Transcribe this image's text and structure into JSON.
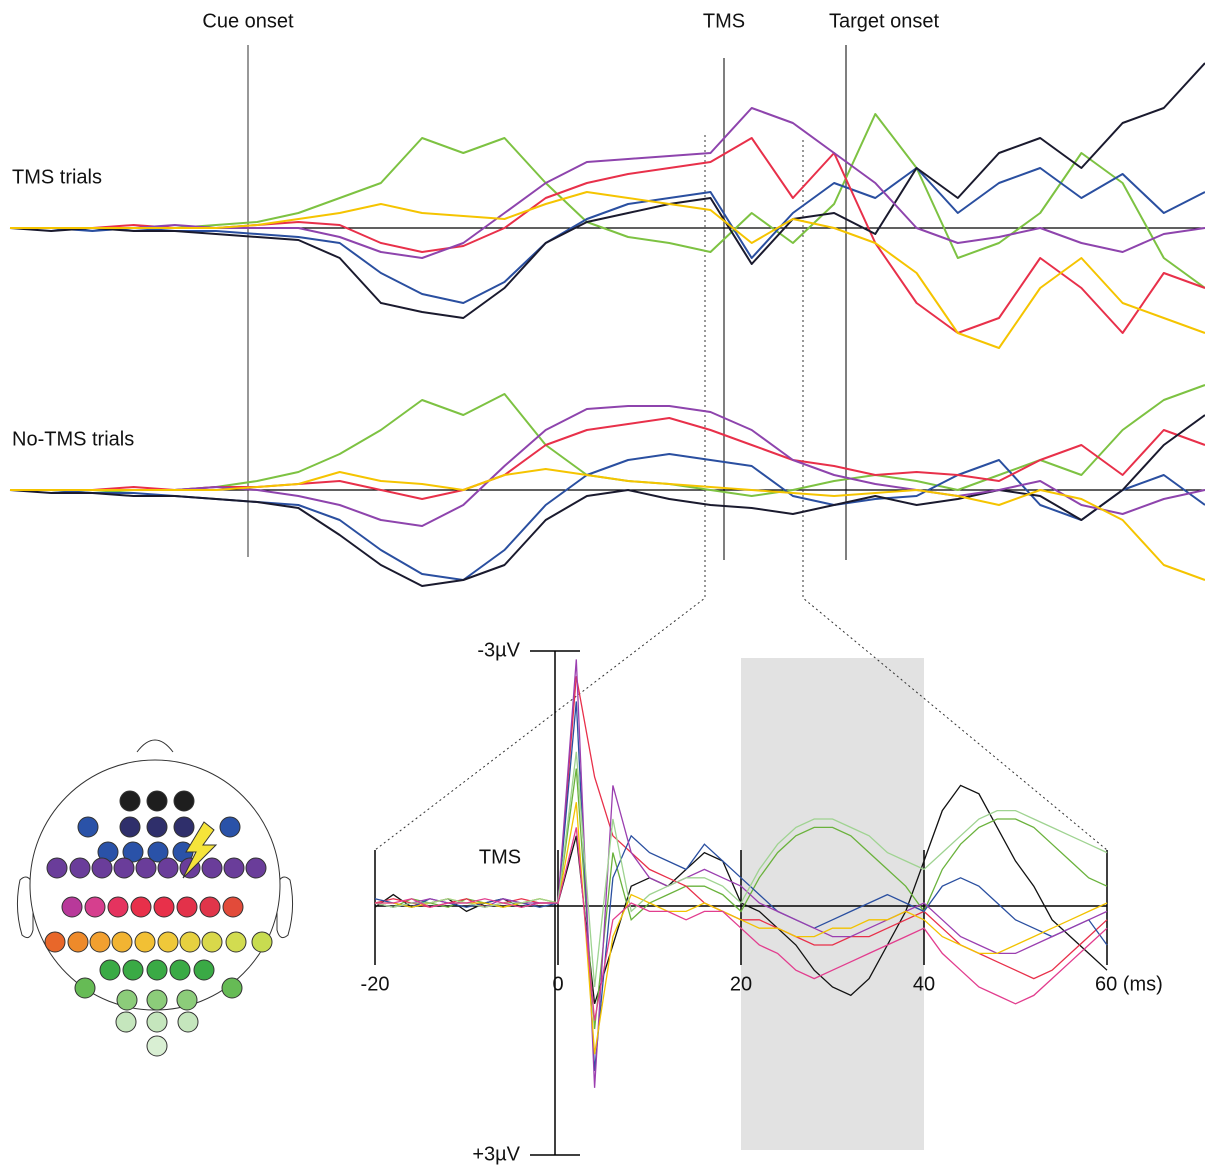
{
  "chart_data": [
    {
      "type": "line",
      "title": "TMS trials",
      "annotations": [
        "Cue onset",
        "TMS",
        "Target onset"
      ],
      "series": [
        {
          "color": "#7dc242",
          "values": [
            0,
            0,
            0,
            0,
            0,
            -0.1,
            -0.2,
            -0.5,
            -1.0,
            -1.5,
            -3.0,
            -2.5,
            -3.0,
            -1.5,
            -0.2,
            0.3,
            0.5,
            0.8,
            -0.5,
            0.5,
            -0.8,
            -3.8,
            -2.0,
            1.0,
            0.5,
            -0.5,
            -2.5,
            -1.5,
            1.0,
            2.0
          ]
        },
        {
          "color": "#2a4fa0",
          "values": [
            0,
            0,
            0.1,
            0,
            0.1,
            0.1,
            0.2,
            0.3,
            0.5,
            1.5,
            2.2,
            2.5,
            1.8,
            0.5,
            -0.3,
            -0.8,
            -1.0,
            -1.2,
            1.0,
            -0.5,
            -1.5,
            -1.0,
            -2.0,
            -0.5,
            -1.5,
            -2.0,
            -1.0,
            -1.8,
            -0.5,
            -1.2
          ]
        },
        {
          "color": "#e8304a",
          "values": [
            0,
            0,
            0,
            -0.1,
            0,
            0,
            -0.1,
            -0.2,
            -0.1,
            0.5,
            0.8,
            0.6,
            0,
            -1.0,
            -1.5,
            -1.8,
            -2.0,
            -2.2,
            -3.0,
            -1.0,
            -2.5,
            0.5,
            2.5,
            3.5,
            3.0,
            1.0,
            2.0,
            3.5,
            1.5,
            2.0
          ]
        },
        {
          "color": "#1a1a2e",
          "values": [
            0,
            0.1,
            0,
            0.1,
            0.1,
            0.2,
            0.3,
            0.4,
            1.0,
            2.5,
            2.8,
            3.0,
            2.0,
            0.5,
            -0.2,
            -0.5,
            -0.8,
            -1.0,
            1.2,
            -0.3,
            -0.5,
            0.2,
            -2.0,
            -1.0,
            -2.5,
            -3.0,
            -2.0,
            -3.5,
            -4.0,
            -5.5
          ]
        },
        {
          "color": "#8e44ad",
          "values": [
            0,
            0,
            0,
            0,
            -0.1,
            0,
            0,
            0,
            0.3,
            0.8,
            1.0,
            0.5,
            -0.5,
            -1.5,
            -2.2,
            -2.3,
            -2.4,
            -2.5,
            -4.0,
            -3.5,
            -2.5,
            -1.5,
            0,
            0.5,
            0.3,
            0,
            0.5,
            0.8,
            0.2,
            0
          ]
        },
        {
          "color": "#f5c400",
          "values": [
            0,
            0,
            0,
            0,
            0,
            0,
            -0.1,
            -0.3,
            -0.5,
            -0.8,
            -0.5,
            -0.4,
            -0.3,
            -0.8,
            -1.2,
            -1.0,
            -0.8,
            -0.6,
            0.5,
            -0.3,
            0,
            0.5,
            1.5,
            3.5,
            4.0,
            2.0,
            1.0,
            2.5,
            3.0,
            3.5
          ]
        }
      ]
    },
    {
      "type": "line",
      "title": "No-TMS trials",
      "series": [
        {
          "color": "#7dc242",
          "values": [
            0,
            0,
            0.1,
            0,
            0,
            -0.1,
            -0.3,
            -0.6,
            -1.2,
            -2.0,
            -3.0,
            -2.5,
            -3.2,
            -1.5,
            -0.5,
            -0.3,
            -0.2,
            0,
            0.2,
            0,
            -0.3,
            -0.5,
            -0.3,
            0,
            -0.5,
            -1.0,
            -0.5,
            -2.0,
            -3.0,
            -3.5
          ]
        },
        {
          "color": "#2a4fa0",
          "values": [
            0,
            0,
            0.1,
            0.1,
            0.2,
            0.3,
            0.4,
            0.5,
            1.0,
            2.0,
            2.8,
            3.0,
            2.0,
            0.5,
            -0.5,
            -1.0,
            -1.2,
            -1.0,
            -0.8,
            0.2,
            0.5,
            0.3,
            0.2,
            -0.5,
            -1.0,
            0.5,
            1.0,
            0,
            -0.5,
            0.5
          ]
        },
        {
          "color": "#e8304a",
          "values": [
            0,
            0,
            0,
            -0.1,
            0,
            -0.1,
            -0.1,
            -0.2,
            -0.3,
            0,
            0.3,
            0,
            -0.5,
            -1.5,
            -2.0,
            -2.2,
            -2.4,
            -2.0,
            -1.5,
            -1.0,
            -0.8,
            -0.5,
            -0.6,
            -0.5,
            -0.3,
            -1.0,
            -1.5,
            -0.5,
            -2.0,
            -1.5
          ]
        },
        {
          "color": "#1a1a2e",
          "values": [
            0,
            0.1,
            0.1,
            0.2,
            0.2,
            0.3,
            0.4,
            0.6,
            1.5,
            2.5,
            3.2,
            3.0,
            2.5,
            1.0,
            0.2,
            0,
            0.3,
            0.5,
            0.6,
            0.8,
            0.5,
            0.2,
            0.5,
            0.3,
            0,
            0.2,
            1.0,
            0,
            -1.5,
            -2.5
          ]
        },
        {
          "color": "#8e44ad",
          "values": [
            0,
            0,
            0,
            0,
            0,
            -0.1,
            0,
            0.2,
            0.5,
            1.0,
            1.2,
            0.5,
            -0.8,
            -2.0,
            -2.7,
            -2.8,
            -2.8,
            -2.6,
            -2.0,
            -1.0,
            -0.5,
            -0.2,
            0,
            0.2,
            0,
            -0.3,
            0.5,
            0.8,
            0.3,
            0
          ]
        },
        {
          "color": "#f5c400",
          "values": [
            0,
            0,
            0,
            0,
            0,
            0,
            -0.1,
            -0.2,
            -0.6,
            -0.3,
            -0.2,
            0,
            -0.5,
            -0.7,
            -0.5,
            -0.3,
            -0.2,
            -0.1,
            0,
            0.1,
            0.2,
            0.1,
            0,
            0.2,
            0.5,
            0,
            0.3,
            1.0,
            2.5,
            3.0
          ]
        }
      ]
    },
    {
      "type": "line",
      "annotation": "TMS",
      "x": [
        -20,
        -18,
        -16,
        -14,
        -12,
        -10,
        -8,
        -6,
        -4,
        -2,
        0,
        2,
        4,
        6,
        8,
        10,
        12,
        14,
        16,
        18,
        20,
        22,
        24,
        26,
        28,
        30,
        32,
        34,
        36,
        38,
        40,
        42,
        44,
        46,
        48,
        50,
        52,
        54,
        56,
        58,
        60
      ],
      "xlim": [
        -20,
        60
      ],
      "xticks": [
        -20,
        0,
        20,
        40,
        {
          "value": 60,
          "label": "60 (ms)"
        }
      ],
      "ylim": [
        -3,
        3
      ],
      "yticks": [
        {
          "value": -3,
          "label": "-3µV"
        },
        {
          "value": 3,
          "label": "+3µV"
        }
      ],
      "shaded_region": [
        20,
        40
      ],
      "series": [
        {
          "color": "#111111",
          "values": [
            0.05,
            -0.1,
            0.05,
            0,
            -0.05,
            0.1,
            0,
            -0.05,
            0.05,
            0,
            0,
            -0.8,
            1.2,
            0.5,
            -0.2,
            -0.3,
            -0.2,
            -0.4,
            -0.6,
            -0.5,
            0,
            0.1,
            0.3,
            0.5,
            0.8,
            1.0,
            1.1,
            0.9,
            0.5,
            0.1,
            -0.5,
            -1.1,
            -1.4,
            -1.3,
            -0.9,
            -0.5,
            -0.2,
            0.2,
            0.4,
            0.6,
            0.8
          ]
        },
        {
          "color": "#6ab23c",
          "values": [
            0,
            0.05,
            -0.05,
            0,
            0.05,
            -0.05,
            0,
            0.05,
            0,
            -0.05,
            0,
            -1.6,
            1.5,
            -0.6,
            0.2,
            0,
            -0.1,
            -0.2,
            -0.2,
            -0.1,
            0.1,
            -0.3,
            -0.6,
            -0.8,
            -0.9,
            -0.9,
            -0.8,
            -0.6,
            -0.4,
            -0.2,
            0.1,
            -0.4,
            -0.7,
            -0.9,
            -1.0,
            -1.0,
            -0.9,
            -0.7,
            -0.5,
            -0.3,
            -0.2
          ]
        },
        {
          "color": "#e8304a",
          "values": [
            0,
            -0.05,
            0,
            0.05,
            0,
            -0.05,
            0.05,
            0,
            -0.05,
            0,
            0,
            -2.7,
            -1.5,
            -0.8,
            -0.6,
            -0.4,
            -0.3,
            -0.2,
            0,
            0.1,
            0.2,
            0.2,
            0.3,
            0.4,
            0.5,
            0.5,
            0.4,
            0.4,
            0.3,
            0.2,
            0.1,
            0.3,
            0.5,
            0.6,
            0.7,
            0.8,
            0.9,
            0.8,
            0.6,
            0.4,
            0.2
          ]
        },
        {
          "color": "#2a4fa0",
          "values": [
            -0.05,
            0,
            0.05,
            -0.05,
            0,
            0.05,
            0,
            -0.05,
            0,
            0.05,
            0,
            -2.4,
            2.0,
            -0.3,
            -0.8,
            -0.6,
            -0.5,
            -0.4,
            -0.7,
            -0.5,
            -0.3,
            -0.1,
            0.1,
            0.2,
            0.3,
            0.2,
            0.1,
            0,
            -0.1,
            0,
            0.1,
            -0.2,
            -0.3,
            -0.2,
            0,
            0.2,
            0.3,
            0.4,
            0.3,
            0.2,
            0.5
          ]
        },
        {
          "color": "#9b3fb0",
          "values": [
            0,
            0.05,
            0,
            -0.05,
            0,
            0,
            0.05,
            -0.05,
            0,
            0,
            0,
            -2.9,
            2.2,
            -1.4,
            -0.6,
            -0.3,
            -0.2,
            -0.3,
            -0.4,
            -0.3,
            -0.2,
            0,
            0.1,
            0.2,
            0.3,
            0.4,
            0.4,
            0.3,
            0.2,
            0.1,
            0,
            0.2,
            0.4,
            0.5,
            0.6,
            0.6,
            0.5,
            0.4,
            0.3,
            0.2,
            0.1
          ]
        },
        {
          "color": "#f2c200",
          "values": [
            0,
            0,
            0.05,
            0,
            -0.05,
            0,
            0,
            0.05,
            0,
            -0.05,
            0,
            -1.2,
            1.8,
            0.4,
            -0.1,
            0,
            0.1,
            0.1,
            0,
            0.1,
            0.2,
            0.3,
            0.3,
            0.4,
            0.4,
            0.3,
            0.3,
            0.2,
            0.2,
            0.1,
            0.2,
            0.4,
            0.5,
            0.6,
            0.6,
            0.5,
            0.4,
            0.3,
            0.2,
            0.1,
            0
          ]
        },
        {
          "color": "#9fd391",
          "values": [
            0,
            0.05,
            0,
            0,
            -0.05,
            0,
            0.05,
            0,
            0,
            -0.05,
            0,
            -1.8,
            1.0,
            -1.0,
            0.1,
            -0.1,
            -0.2,
            -0.3,
            -0.3,
            -0.2,
            0,
            -0.4,
            -0.7,
            -0.9,
            -1.0,
            -1.0,
            -0.9,
            -0.8,
            -0.6,
            -0.5,
            -0.4,
            -0.6,
            -0.8,
            -1.0,
            -1.1,
            -1.1,
            -1.0,
            -0.9,
            -0.8,
            -0.7,
            -0.6
          ]
        },
        {
          "color": "#e23d8e",
          "values": [
            0,
            0,
            -0.05,
            0.05,
            0,
            0,
            -0.05,
            0,
            0.05,
            0,
            0,
            -0.9,
            1.4,
            0.2,
            0,
            0.1,
            0.1,
            0.2,
            0.1,
            0.1,
            0.3,
            0.5,
            0.6,
            0.8,
            0.9,
            0.8,
            0.7,
            0.6,
            0.5,
            0.4,
            0.3,
            0.6,
            0.8,
            1.0,
            1.1,
            1.2,
            1.1,
            0.9,
            0.7,
            0.5,
            0.3
          ]
        }
      ]
    }
  ]
}
